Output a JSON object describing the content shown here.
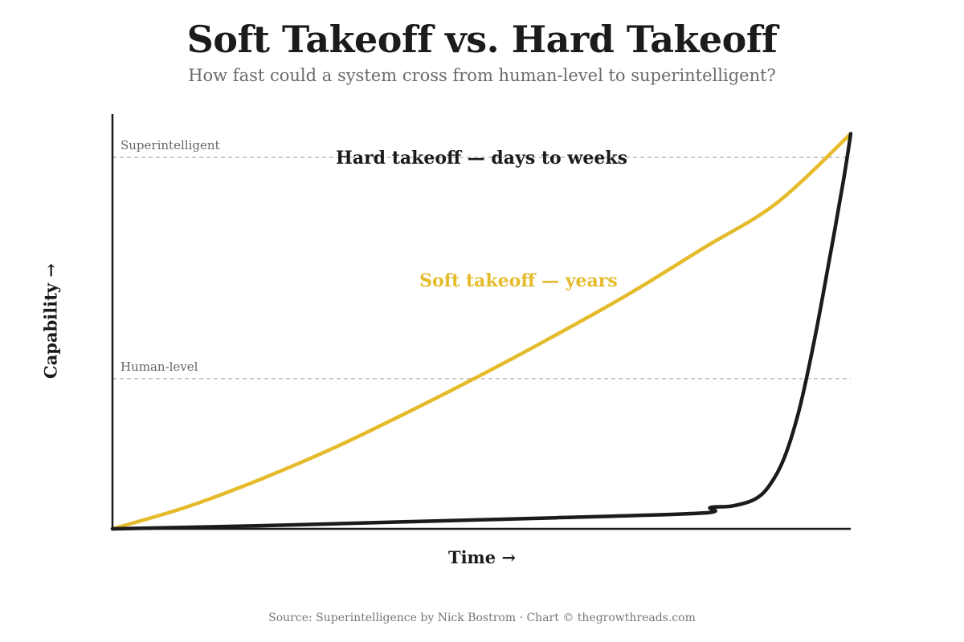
{
  "header": {
    "title": "Soft Takeoff vs. Hard Takeoff",
    "subtitle": "How fast could a system cross from human-level to superintelligent?"
  },
  "footer": {
    "source": "Source: Superintelligence by Nick Bostrom · Chart © thegrowthreads.com"
  },
  "chart_data": {
    "type": "line",
    "title": "Soft Takeoff vs. Hard Takeoff",
    "subtitle": "How fast could a system cross from human-level to superintelligent?",
    "xlabel": "Time →",
    "ylabel": "Capability →",
    "xlim": [
      0,
      1
    ],
    "ylim": [
      0,
      1.05
    ],
    "grid": false,
    "reference_lines": [
      {
        "label": "Superintelligent",
        "y": 0.94
      },
      {
        "label": "Human-level",
        "y": 0.38
      }
    ],
    "series": [
      {
        "name": "Soft takeoff — years",
        "color": "#E5BB2B",
        "x": [
          0,
          0.1,
          0.2,
          0.3,
          0.4,
          0.5,
          0.6,
          0.7,
          0.8,
          0.9,
          1.0
        ],
        "y": [
          0,
          0.055,
          0.125,
          0.205,
          0.295,
          0.39,
          0.49,
          0.595,
          0.71,
          0.825,
          1.0
        ]
      },
      {
        "name": "Hard takeoff — days to weeks",
        "color": "#1b1b1b",
        "x": [
          0,
          0.2,
          0.4,
          0.6,
          0.8,
          0.81,
          0.84,
          0.87,
          0.89,
          0.91,
          0.93,
          0.95,
          0.97,
          0.99,
          1.0
        ],
        "y": [
          0,
          0.008,
          0.018,
          0.028,
          0.04,
          0.054,
          0.058,
          0.075,
          0.11,
          0.18,
          0.3,
          0.47,
          0.67,
          0.88,
          1.0
        ]
      }
    ],
    "annotations": [
      {
        "text": "Hard takeoff — days to weeks",
        "series": 1,
        "x": 0.5,
        "y": 0.94
      },
      {
        "text": "Soft takeoff — years",
        "series": 0,
        "x": 0.55,
        "y": 0.63
      }
    ]
  }
}
